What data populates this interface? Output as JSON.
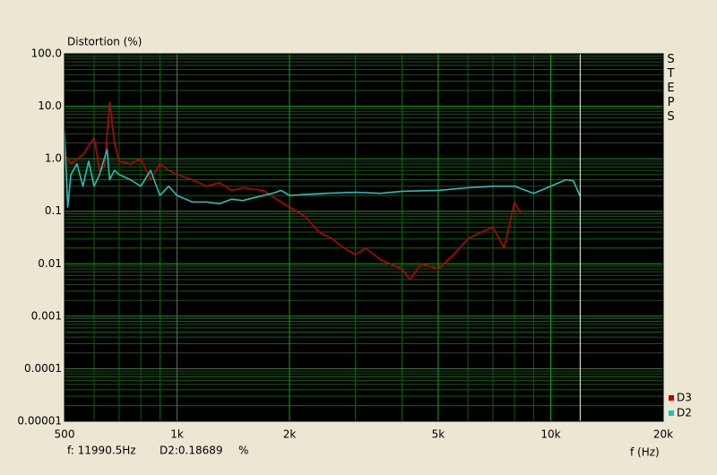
{
  "chart_data": {
    "type": "line",
    "y_label": "Distortion (%)",
    "x_label": "f (Hz)",
    "side_label": "STEPS",
    "log_x": true,
    "log_y": true,
    "grid": true,
    "minor_grid": true,
    "background": "#000000",
    "grid_color": "#1a9a1a",
    "minor_grid_color": "#0b5e0b",
    "legend_position": "lower right",
    "xlim": [
      500,
      20000
    ],
    "ylim": [
      1e-05,
      100
    ],
    "xticks": [
      500,
      {
        "value": 1000,
        "label": "1k"
      },
      {
        "value": 2000,
        "label": "2k"
      },
      {
        "value": 5000,
        "label": "5k"
      },
      {
        "value": 10000,
        "label": "10k"
      },
      {
        "value": 20000,
        "label": "20k"
      }
    ],
    "yticks": [
      {
        "value": 100,
        "label": "100.0"
      },
      {
        "value": 10,
        "label": "10.0"
      },
      {
        "value": 1,
        "label": "1.0"
      },
      0.1,
      0.01,
      0.001,
      0.0001,
      1e-05
    ],
    "cursor": {
      "value": 11990.5,
      "label": "f: 11990.5Hz",
      "color": "#ffffc8"
    },
    "cursor_readout": "D2:0.18689",
    "cursor_unit": "%",
    "series": [
      {
        "name": "D3",
        "color": "#c00000",
        "x": [
          500,
          520,
          560,
          600,
          620,
          640,
          660,
          680,
          700,
          750,
          800,
          850,
          900,
          950,
          1000,
          1100,
          1200,
          1300,
          1400,
          1500,
          1700,
          1900,
          2000,
          2200,
          2400,
          2600,
          2800,
          3000,
          3200,
          3500,
          4000,
          4200,
          4500,
          5000,
          5500,
          6000,
          6500,
          7000,
          7500,
          8000,
          8300
        ],
        "values": [
          1.2,
          0.8,
          1.2,
          2.5,
          0.6,
          0.7,
          12,
          2,
          0.9,
          0.8,
          1.0,
          0.4,
          0.8,
          0.6,
          0.5,
          0.4,
          0.3,
          0.35,
          0.25,
          0.28,
          0.25,
          0.15,
          0.12,
          0.08,
          0.04,
          0.03,
          0.02,
          0.015,
          0.02,
          0.012,
          0.008,
          0.005,
          0.01,
          0.008,
          0.015,
          0.03,
          0.04,
          0.05,
          0.02,
          0.15,
          0.09
        ]
      },
      {
        "name": "D2",
        "color": "#20c0c0",
        "x": [
          500,
          510,
          520,
          540,
          560,
          580,
          600,
          620,
          650,
          660,
          680,
          700,
          750,
          800,
          850,
          900,
          950,
          1000,
          1100,
          1200,
          1300,
          1400,
          1500,
          1600,
          1800,
          1900,
          2000,
          2500,
          3000,
          3500,
          4000,
          5000,
          6000,
          7000,
          8000,
          9000,
          10000,
          11000,
          11500,
          12000
        ],
        "values": [
          3.5,
          0.12,
          0.5,
          0.8,
          0.3,
          0.9,
          0.3,
          0.5,
          1.5,
          0.4,
          0.6,
          0.5,
          0.4,
          0.3,
          0.6,
          0.2,
          0.3,
          0.2,
          0.15,
          0.15,
          0.14,
          0.17,
          0.16,
          0.18,
          0.22,
          0.25,
          0.2,
          0.22,
          0.23,
          0.22,
          0.24,
          0.25,
          0.28,
          0.3,
          0.3,
          0.22,
          0.3,
          0.4,
          0.38,
          0.19
        ]
      }
    ]
  }
}
